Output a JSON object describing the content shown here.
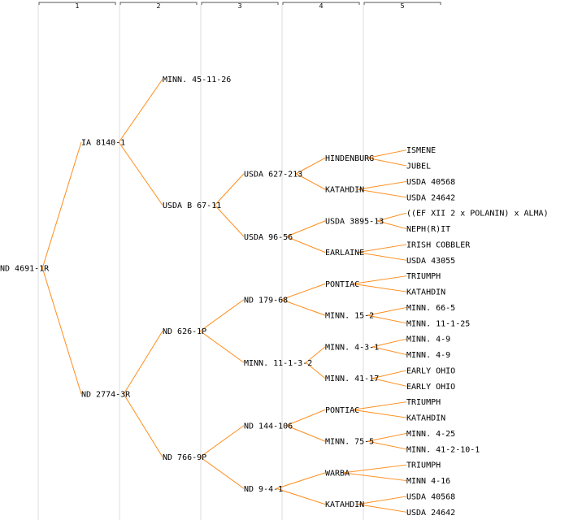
{
  "generations": [
    "1",
    "2",
    "3",
    "4",
    "5"
  ],
  "colors": {
    "background": "#ffffff",
    "line": "#ff8c1a",
    "column_band": "#eeeeee",
    "text": "#000000",
    "bracket": "#555555"
  },
  "tree": {
    "label": "ND 4691-1R",
    "children": [
      {
        "label": "IA 8140-1",
        "children": [
          {
            "label": "MINN. 45-11-26"
          },
          {
            "label": "USDA B 67-11",
            "children": [
              {
                "label": "USDA 627-213",
                "children": [
                  {
                    "label": "HINDENBURG",
                    "children": [
                      {
                        "label": "ISMENE"
                      },
                      {
                        "label": "JUBEL"
                      }
                    ]
                  },
                  {
                    "label": "KATAHDIN",
                    "children": [
                      {
                        "label": "USDA 40568"
                      },
                      {
                        "label": "USDA 24642"
                      }
                    ]
                  }
                ]
              },
              {
                "label": "USDA 96-56",
                "children": [
                  {
                    "label": "USDA 3895-13",
                    "children": [
                      {
                        "label": "((EF XII 2 x POLANIN) x ALMA)"
                      },
                      {
                        "label": "NEPH(R)IT"
                      }
                    ]
                  },
                  {
                    "label": "EARLAINE",
                    "children": [
                      {
                        "label": "IRISH COBBLER"
                      },
                      {
                        "label": "USDA 43055"
                      }
                    ]
                  }
                ]
              }
            ]
          }
        ]
      },
      {
        "label": "ND 2774-3R",
        "children": [
          {
            "label": "ND 626-1P",
            "children": [
              {
                "label": "ND 179-68",
                "children": [
                  {
                    "label": "PONTIAC",
                    "children": [
                      {
                        "label": "TRIUMPH"
                      },
                      {
                        "label": "KATAHDIN"
                      }
                    ]
                  },
                  {
                    "label": "MINN. 15-2",
                    "children": [
                      {
                        "label": "MINN. 66-5"
                      },
                      {
                        "label": "MINN. 11-1-25"
                      }
                    ]
                  }
                ]
              },
              {
                "label": "MINN. 11-1-3-2",
                "children": [
                  {
                    "label": "MINN. 4-3-1",
                    "children": [
                      {
                        "label": "MINN. 4-9"
                      },
                      {
                        "label": "MINN. 4-9"
                      }
                    ]
                  },
                  {
                    "label": "MINN. 41-17",
                    "children": [
                      {
                        "label": "EARLY OHIO"
                      },
                      {
                        "label": "EARLY OHIO"
                      }
                    ]
                  }
                ]
              }
            ]
          },
          {
            "label": "ND 766-9P",
            "children": [
              {
                "label": "ND 144-106",
                "children": [
                  {
                    "label": "PONTIAC",
                    "children": [
                      {
                        "label": "TRIUMPH"
                      },
                      {
                        "label": "KATAHDIN"
                      }
                    ]
                  },
                  {
                    "label": "MINN. 75-5",
                    "children": [
                      {
                        "label": "MINN. 4-25"
                      },
                      {
                        "label": "MINN. 41-2-10-1"
                      }
                    ]
                  }
                ]
              },
              {
                "label": "ND 9-4-1",
                "children": [
                  {
                    "label": "WARBA",
                    "children": [
                      {
                        "label": "TRIUMPH"
                      },
                      {
                        "label": "MINN 4-16"
                      }
                    ]
                  },
                  {
                    "label": "KATAHDIN",
                    "children": [
                      {
                        "label": "USDA 40568"
                      },
                      {
                        "label": "USDA 24642"
                      }
                    ]
                  }
                ]
              }
            ]
          }
        ]
      }
    ]
  }
}
